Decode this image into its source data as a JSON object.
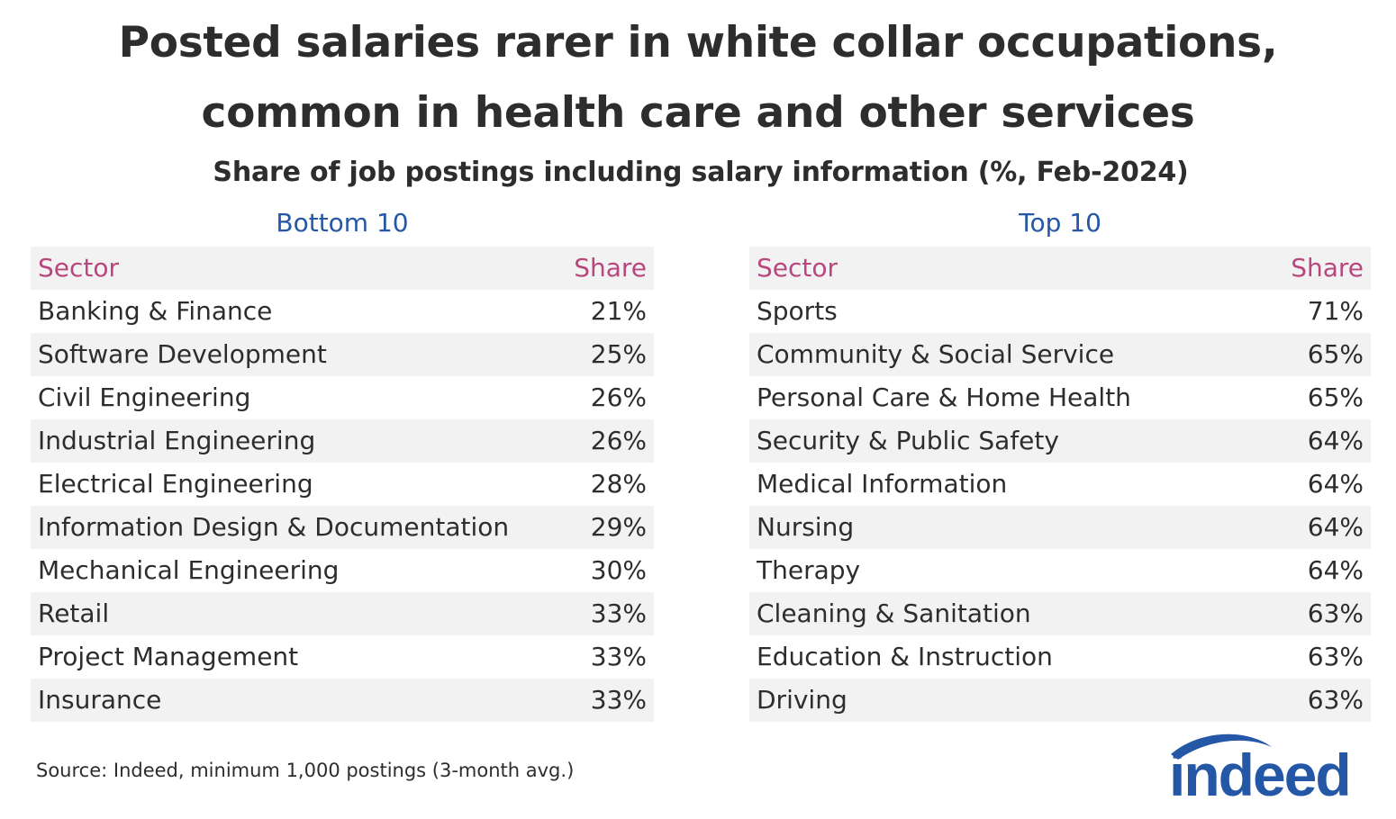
{
  "header": {
    "title_line_1": "Posted salaries rarer in white collar occupations,",
    "title_line_2": "common in health care and other services",
    "subtitle": "Share of job postings including salary information (%, Feb-2024)"
  },
  "panels": {
    "bottom": {
      "heading": "Bottom 10",
      "col_sector": "Sector",
      "col_share": "Share",
      "rows": [
        {
          "sector": "Banking & Finance",
          "share": "21%"
        },
        {
          "sector": "Software Development",
          "share": "25%"
        },
        {
          "sector": "Civil Engineering",
          "share": "26%"
        },
        {
          "sector": "Industrial Engineering",
          "share": "26%"
        },
        {
          "sector": "Electrical Engineering",
          "share": "28%"
        },
        {
          "sector": "Information Design & Documentation",
          "share": "29%"
        },
        {
          "sector": "Mechanical Engineering",
          "share": "30%"
        },
        {
          "sector": "Retail",
          "share": "33%"
        },
        {
          "sector": "Project Management",
          "share": "33%"
        },
        {
          "sector": "Insurance",
          "share": "33%"
        }
      ]
    },
    "top": {
      "heading": "Top 10",
      "col_sector": "Sector",
      "col_share": "Share",
      "rows": [
        {
          "sector": "Sports",
          "share": "71%"
        },
        {
          "sector": "Community & Social Service",
          "share": "65%"
        },
        {
          "sector": "Personal Care & Home Health",
          "share": "65%"
        },
        {
          "sector": "Security & Public Safety",
          "share": "64%"
        },
        {
          "sector": "Medical Information",
          "share": "64%"
        },
        {
          "sector": "Nursing",
          "share": "64%"
        },
        {
          "sector": "Therapy",
          "share": "64%"
        },
        {
          "sector": "Cleaning & Sanitation",
          "share": "63%"
        },
        {
          "sector": "Education & Instruction",
          "share": "63%"
        },
        {
          "sector": "Driving",
          "share": "63%"
        }
      ]
    }
  },
  "footer": {
    "source": "Source: Indeed, minimum 1,000 postings (3-month avg.)",
    "logo": "indeed"
  },
  "colors": {
    "heading_blue": "#2557a7",
    "header_magenta": "#b8477e",
    "row_shade": "#f2f2f2",
    "text": "#2d2d2d",
    "logo_blue": "#2557a7"
  },
  "chart_data": {
    "type": "table",
    "title": "Posted salaries rarer in white collar occupations, common in health care and other services",
    "subtitle": "Share of job postings including salary information (%, Feb-2024)",
    "tables": [
      {
        "name": "Bottom 10",
        "columns": [
          "Sector",
          "Share"
        ],
        "rows": [
          [
            "Banking & Finance",
            21
          ],
          [
            "Software Development",
            25
          ],
          [
            "Civil Engineering",
            26
          ],
          [
            "Industrial Engineering",
            26
          ],
          [
            "Electrical Engineering",
            28
          ],
          [
            "Information Design & Documentation",
            29
          ],
          [
            "Mechanical Engineering",
            30
          ],
          [
            "Retail",
            33
          ],
          [
            "Project Management",
            33
          ],
          [
            "Insurance",
            33
          ]
        ]
      },
      {
        "name": "Top 10",
        "columns": [
          "Sector",
          "Share"
        ],
        "rows": [
          [
            "Sports",
            71
          ],
          [
            "Community & Social Service",
            65
          ],
          [
            "Personal Care & Home Health",
            65
          ],
          [
            "Security & Public Safety",
            64
          ],
          [
            "Medical Information",
            64
          ],
          [
            "Nursing",
            64
          ],
          [
            "Therapy",
            64
          ],
          [
            "Cleaning & Sanitation",
            63
          ],
          [
            "Education & Instruction",
            63
          ],
          [
            "Driving",
            63
          ]
        ]
      }
    ],
    "source": "Source: Indeed, minimum 1,000 postings (3-month avg.)"
  }
}
